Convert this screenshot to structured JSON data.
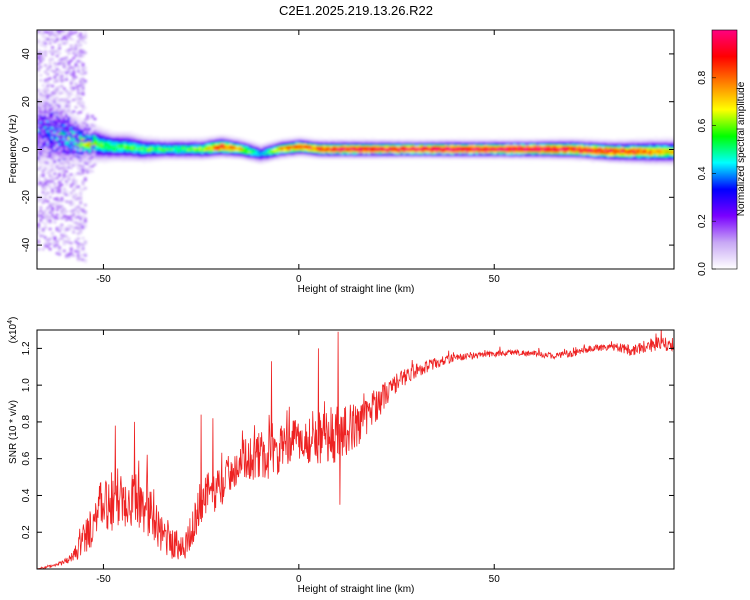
{
  "title": "C2E1.2025.219.13.26.R22",
  "chart_data": [
    {
      "type": "heatmap",
      "xlabel": "Height of straight line (km)",
      "ylabel": "Frequency (Hz)",
      "xlim": [
        -67,
        96
      ],
      "ylim": [
        -50,
        50
      ],
      "x_ticks": [
        -50,
        0,
        50
      ],
      "y_ticks": [
        -40,
        -20,
        0,
        20,
        40
      ],
      "grid": false,
      "colorbar": {
        "label": "Normalized spectral amplitude",
        "range": [
          0,
          1
        ],
        "ticks": [
          0.0,
          0.2,
          0.4,
          0.6,
          0.8
        ],
        "colormap": [
          "#ffffff",
          "#c8a8f5",
          "#7a00ff",
          "#0000ff",
          "#00ffff",
          "#00ff00",
          "#ffff00",
          "#ff8000",
          "#ff0000",
          "#ff0080"
        ]
      },
      "ridge": {
        "x": [
          -65,
          -60,
          -56,
          -52,
          -48,
          -44,
          -40,
          -35,
          -30,
          -25,
          -20,
          -15,
          -10,
          -5,
          0,
          5,
          10,
          15,
          20,
          30,
          40,
          50,
          60,
          70,
          80,
          85,
          90,
          95
        ],
        "center_hz": [
          8,
          5,
          3,
          2,
          1,
          1,
          0,
          0,
          0,
          0,
          1,
          0,
          -2,
          0,
          1,
          0,
          0,
          0,
          0,
          0,
          0,
          0,
          0,
          0,
          -1,
          -1,
          -1,
          -1
        ],
        "halfwidth_hz": [
          12,
          9,
          6,
          5,
          4,
          4,
          3.5,
          3,
          3,
          3,
          3,
          2.8,
          2.8,
          2.6,
          2.6,
          2.5,
          2.5,
          2.5,
          2.5,
          2.4,
          2.5,
          2.5,
          2.6,
          2.8,
          3,
          3.2,
          3.4,
          3.5
        ],
        "peak_amplitude": [
          0.25,
          0.35,
          0.5,
          0.55,
          0.55,
          0.55,
          0.55,
          0.55,
          0.55,
          0.6,
          0.9,
          0.7,
          0.4,
          0.75,
          0.85,
          0.9,
          0.95,
          0.95,
          0.95,
          1.0,
          1.0,
          1.0,
          1.0,
          0.95,
          0.9,
          0.85,
          0.8,
          0.7
        ]
      }
    },
    {
      "type": "line",
      "xlabel": "Height of straight line (km)",
      "ylabel": "SNR (10 * v/v)",
      "y_multiplier": "(x10",
      "y_multiplier_exp": "4",
      "y_multiplier_close": ")",
      "xlim": [
        -67,
        96
      ],
      "ylim": [
        0,
        1.3
      ],
      "x_ticks": [
        -50,
        0,
        50
      ],
      "y_ticks": [
        0.2,
        0.4,
        0.6,
        0.8,
        1.0,
        1.2
      ],
      "grid": false,
      "color": "#ee2222",
      "envelope": {
        "x": [
          -67,
          -62,
          -58,
          -55,
          -52,
          -50,
          -47,
          -44,
          -40,
          -36,
          -32,
          -29,
          -26,
          -24,
          -20,
          -17,
          -14,
          -10,
          -7,
          -3,
          0,
          3,
          7,
          10,
          13,
          17,
          20,
          23,
          26,
          30,
          35,
          40,
          45,
          50,
          55,
          60,
          65,
          70,
          75,
          80,
          85,
          90,
          96
        ],
        "y": [
          0.0,
          0.02,
          0.06,
          0.16,
          0.28,
          0.34,
          0.38,
          0.4,
          0.36,
          0.22,
          0.14,
          0.12,
          0.3,
          0.4,
          0.45,
          0.54,
          0.6,
          0.62,
          0.6,
          0.68,
          0.7,
          0.7,
          0.72,
          0.74,
          0.76,
          0.82,
          0.9,
          0.97,
          1.03,
          1.08,
          1.12,
          1.15,
          1.16,
          1.17,
          1.18,
          1.17,
          1.16,
          1.17,
          1.2,
          1.21,
          1.19,
          1.22,
          1.22
        ]
      },
      "noise": {
        "x": [
          -67,
          -58,
          -55,
          -50,
          -44,
          -38,
          -33,
          -29,
          -25,
          -20,
          -15,
          -10,
          -5,
          0,
          5,
          10,
          15,
          20,
          25,
          30,
          40,
          60,
          80,
          90,
          96
        ],
        "amplitude": [
          0.0,
          0.02,
          0.1,
          0.16,
          0.18,
          0.14,
          0.1,
          0.08,
          0.12,
          0.12,
          0.1,
          0.14,
          0.12,
          0.12,
          0.14,
          0.16,
          0.12,
          0.09,
          0.05,
          0.04,
          0.02,
          0.015,
          0.02,
          0.04,
          0.04
        ]
      },
      "spikes": [
        {
          "x": -47,
          "y": 0.78
        },
        {
          "x": -42,
          "y": 0.8
        },
        {
          "x": -25,
          "y": 0.84
        },
        {
          "x": -22,
          "y": 0.82
        },
        {
          "x": -7,
          "y": 1.13
        },
        {
          "x": 5,
          "y": 1.2
        },
        {
          "x": 10,
          "y": 1.29
        },
        {
          "x": 10.5,
          "y": 0.35
        }
      ]
    }
  ]
}
